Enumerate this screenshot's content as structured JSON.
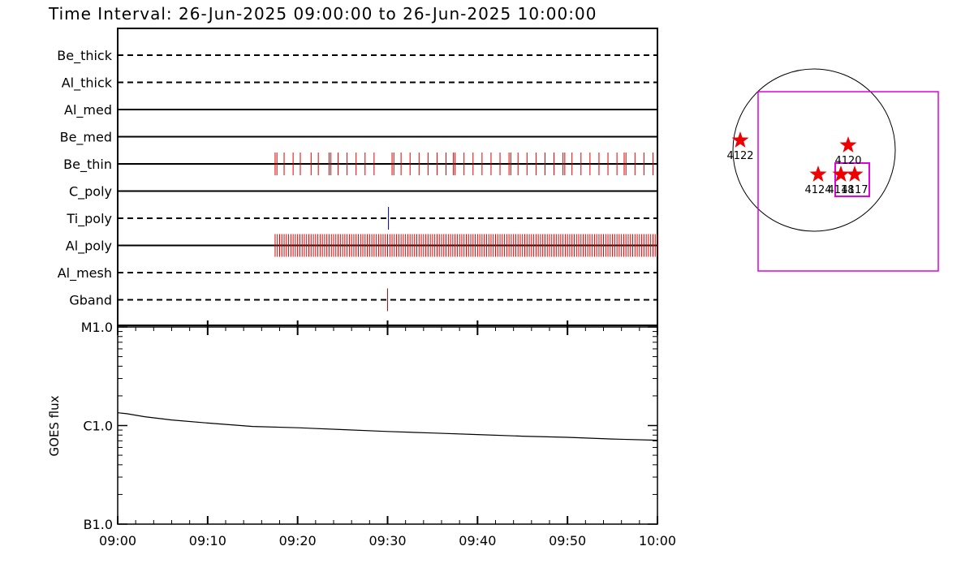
{
  "title": "Time Interval: 26-Jun-2025 09:00:00 to 26-Jun-2025 10:00:00",
  "colors": {
    "event": "#e00000",
    "ti_event": "#000080",
    "fov": "#e000e0",
    "star": "#ee0000"
  },
  "chart_data": [
    {
      "type": "timeline",
      "x_range": [
        "09:00",
        "10:00"
      ],
      "filters": [
        {
          "name": "Be_thick",
          "style": "dashed",
          "events": []
        },
        {
          "name": "Al_thick",
          "style": "dashed",
          "events": []
        },
        {
          "name": "Al_med",
          "style": "solid",
          "events": []
        },
        {
          "name": "Be_med",
          "style": "solid",
          "events": []
        },
        {
          "name": "Be_thin",
          "style": "solid",
          "events": [
            17.5,
            17.7,
            18.5,
            19.5,
            20.3,
            21.5,
            22.3,
            23.5,
            23.7,
            24.5,
            25.5,
            26.5,
            27.5,
            28.5,
            30.5,
            30.7,
            31.5,
            32.5,
            33.5,
            34.5,
            35.5,
            36.5,
            37.3,
            37.5,
            38.5,
            39.5,
            40.5,
            41.5,
            42.5,
            43.5,
            43.7,
            44.5,
            45.5,
            46.5,
            47.5,
            48.5,
            49.5,
            49.7,
            50.5,
            51.5,
            52.5,
            53.5,
            54.5,
            55.5,
            56.3,
            56.5,
            57.5,
            58.5,
            59.5
          ]
        },
        {
          "name": "C_poly",
          "style": "solid",
          "events": []
        },
        {
          "name": "Ti_poly",
          "style": "dashed",
          "events": [
            30.1
          ]
        },
        {
          "name": "Al_poly",
          "style": "solid",
          "events": [
            17.5,
            17.75,
            18.0,
            18.25,
            18.5,
            18.75,
            19.0,
            19.25,
            19.5,
            19.75,
            20.0,
            20.25,
            20.5,
            20.75,
            21.0,
            21.25,
            21.5,
            21.75,
            22.0,
            22.25,
            22.5,
            22.75,
            23.0,
            23.25,
            23.5,
            23.75,
            24.0,
            24.25,
            24.5,
            24.75,
            25.0,
            25.25,
            25.5,
            25.75,
            26.0,
            26.25,
            26.5,
            26.75,
            27.0,
            27.25,
            27.5,
            27.75,
            28.0,
            28.25,
            28.5,
            28.75,
            29.0,
            29.25,
            29.5,
            29.75,
            30.0,
            30.25,
            30.5,
            30.75,
            31.0,
            31.25,
            31.5,
            31.75,
            32.0,
            32.25,
            32.5,
            32.75,
            33.0,
            33.25,
            33.5,
            33.75,
            34.0,
            34.25,
            34.5,
            34.75,
            35.0,
            35.25,
            35.5,
            35.75,
            36.0,
            36.25,
            36.5,
            36.75,
            37.0,
            37.25,
            37.5,
            37.75,
            38.0,
            38.25,
            38.5,
            38.75,
            39.0,
            39.25,
            39.5,
            39.75,
            40.0,
            40.25,
            40.5,
            40.75,
            41.0,
            41.25,
            41.5,
            41.75,
            42.0,
            42.25,
            42.5,
            42.75,
            43.0,
            43.25,
            43.5,
            43.75,
            44.0,
            44.25,
            44.5,
            44.75,
            45.0,
            45.25,
            45.5,
            45.75,
            46.0,
            46.25,
            46.5,
            46.75,
            47.0,
            47.25,
            47.5,
            47.75,
            48.0,
            48.25,
            48.5,
            48.75,
            49.0,
            49.25,
            49.5,
            49.75,
            50.0,
            50.25,
            50.5,
            50.75,
            51.0,
            51.25,
            51.5,
            51.75,
            52.0,
            52.25,
            52.5,
            52.75,
            53.0,
            53.25,
            53.5,
            53.75,
            54.0,
            54.25,
            54.5,
            54.75,
            55.0,
            55.25,
            55.5,
            55.75,
            56.0,
            56.25,
            56.5,
            56.75,
            57.0,
            57.25,
            57.5,
            57.75,
            58.0,
            58.25,
            58.5,
            58.75,
            59.0,
            59.25,
            59.5,
            59.75,
            60.0
          ]
        },
        {
          "name": "Al_mesh",
          "style": "dashed",
          "events": []
        },
        {
          "name": "Gband",
          "style": "dashed",
          "events": [
            30.0
          ]
        }
      ]
    },
    {
      "type": "line",
      "ylabel": "GOES flux",
      "y_scale": "log",
      "y_ticks": [
        "M1.0",
        "C1.0",
        "B1.0"
      ],
      "x_ticks": [
        "09:00",
        "09:10",
        "09:20",
        "09:30",
        "09:40",
        "09:50",
        "10:00"
      ],
      "series": [
        {
          "x": [
            0,
            1,
            3,
            6,
            10,
            15,
            20,
            25,
            30,
            35,
            40,
            45,
            50,
            55,
            60
          ],
          "values": [
            1.35e-06,
            1.32e-06,
            1.23e-06,
            1.14e-06,
            1.06e-06,
            9.8e-07,
            9.5e-07,
            9.1e-07,
            8.7e-07,
            8.4e-07,
            8.1e-07,
            7.8e-07,
            7.6e-07,
            7.3e-07,
            7.1e-07
          ]
        }
      ]
    },
    {
      "type": "scatter",
      "description_units": "solar disk (arcsec-like coordinates)",
      "regions": [
        {
          "label": "4122",
          "x": -910,
          "y": 120
        },
        {
          "label": "4120",
          "x": 420,
          "y": 60
        },
        {
          "label": "4124",
          "x": 50,
          "y": -300
        },
        {
          "label": "4118",
          "x": 330,
          "y": -300
        },
        {
          "label": "4117",
          "x": 500,
          "y": -300
        }
      ]
    }
  ]
}
